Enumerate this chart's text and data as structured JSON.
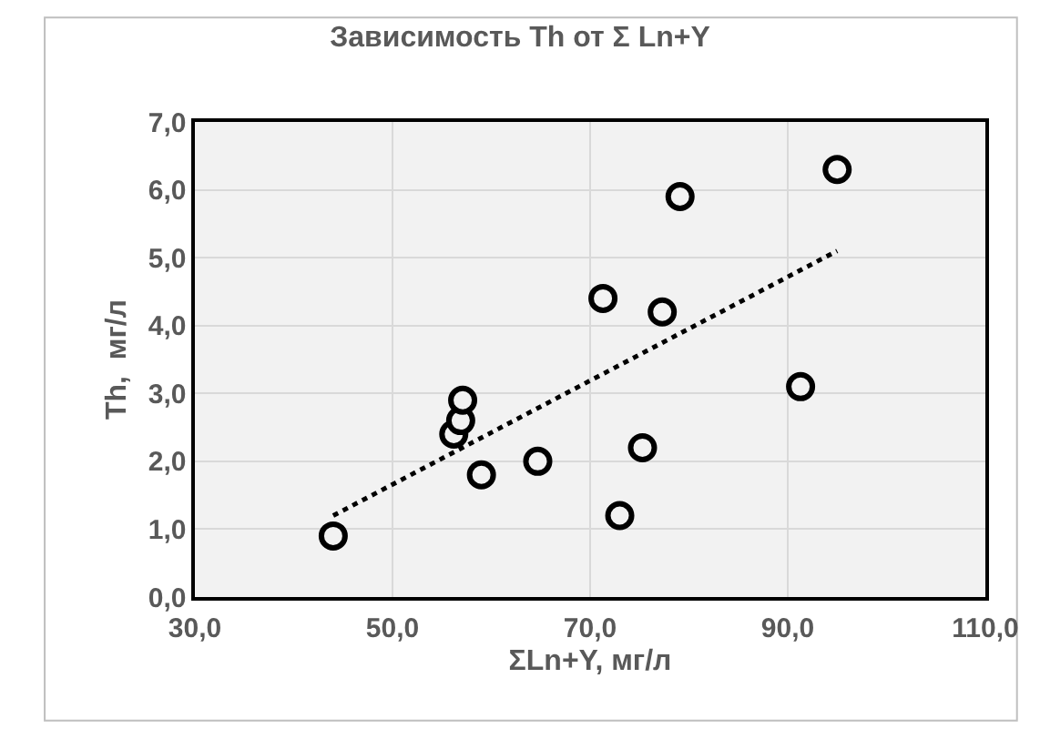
{
  "chart_data": {
    "type": "scatter",
    "title": "Зависимость Th от Σ Ln+Y",
    "xlabel": "ΣLn+Y, мг/л",
    "ylabel": "Th,  мг/л",
    "xlim": [
      30,
      110
    ],
    "xticks": [
      {
        "value": 30,
        "label": "30,0"
      },
      {
        "value": 50,
        "label": "50,0"
      },
      {
        "value": 70,
        "label": "70,0"
      },
      {
        "value": 90,
        "label": "90,0"
      },
      {
        "value": 110,
        "label": "110,0"
      }
    ],
    "ylim": [
      0,
      7
    ],
    "yticks": [
      {
        "value": 0,
        "label": "0,0"
      },
      {
        "value": 1,
        "label": "1,0"
      },
      {
        "value": 2,
        "label": "2,0"
      },
      {
        "value": 3,
        "label": "3,0"
      },
      {
        "value": 4,
        "label": "4,0"
      },
      {
        "value": 5,
        "label": "5,0"
      },
      {
        "value": 6,
        "label": "6,0"
      },
      {
        "value": 7,
        "label": "7,0"
      }
    ],
    "grid": true,
    "series": [
      {
        "marker": "circle",
        "color": "#000000",
        "x": [
          44.0,
          56.2,
          56.9,
          57.1,
          59.0,
          64.7,
          71.3,
          73.0,
          75.3,
          77.3,
          79.1,
          91.3,
          95.0
        ],
        "values": [
          0.9,
          2.4,
          2.6,
          2.9,
          1.8,
          2.0,
          4.4,
          1.2,
          2.2,
          4.2,
          5.9,
          3.1,
          6.3
        ]
      },
      {
        "type": "line",
        "color": "#000000",
        "line_style": "dotted",
        "x": [
          44.0,
          95.0
        ],
        "values": [
          1.2,
          5.1
        ]
      }
    ]
  }
}
